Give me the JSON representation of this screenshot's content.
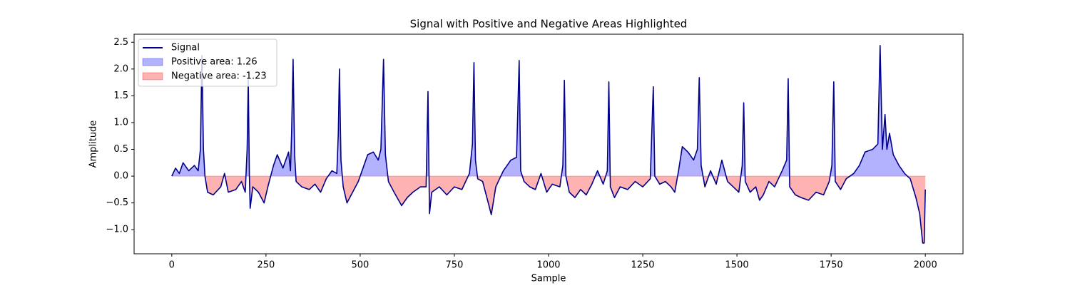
{
  "chart_data": {
    "type": "line",
    "title": "Signal with Positive and Negative Areas Highlighted",
    "x_label": "Sample",
    "y_label": "Amplitude",
    "xlim": [
      -100,
      2100
    ],
    "ylim": [
      -1.45,
      2.65
    ],
    "xticks": [
      0,
      250,
      500,
      750,
      1000,
      1250,
      1500,
      1750,
      2000
    ],
    "yticks": [
      {
        "value": -1.0,
        "label": "−1.0"
      },
      {
        "value": -0.5,
        "label": "−0.5"
      },
      {
        "value": 0.0,
        "label": "0.0"
      },
      {
        "value": 0.5,
        "label": "0.5"
      },
      {
        "value": 1.0,
        "label": "1.0"
      },
      {
        "value": 1.5,
        "label": "1.5"
      },
      {
        "value": 2.0,
        "label": "2.0"
      },
      {
        "value": 2.5,
        "label": "2.5"
      }
    ],
    "legend": "upper left",
    "x": [
      0,
      10,
      20,
      30,
      45,
      60,
      70,
      76,
      80,
      84,
      88,
      95,
      110,
      130,
      140,
      150,
      170,
      185,
      195,
      200,
      203,
      206,
      208,
      215,
      230,
      245,
      255,
      270,
      280,
      295,
      310,
      315,
      318,
      322,
      326,
      330,
      345,
      365,
      380,
      395,
      410,
      425,
      438,
      442,
      445,
      449,
      455,
      465,
      480,
      495,
      505,
      520,
      535,
      548,
      555,
      562,
      567,
      575,
      590,
      610,
      625,
      640,
      660,
      675,
      680,
      684,
      690,
      710,
      730,
      750,
      770,
      790,
      798,
      802,
      806,
      812,
      825,
      840,
      848,
      860,
      880,
      900,
      915,
      922,
      926,
      935,
      950,
      965,
      980,
      995,
      1010,
      1030,
      1038,
      1042,
      1046,
      1055,
      1070,
      1085,
      1100,
      1115,
      1130,
      1145,
      1156,
      1160,
      1164,
      1175,
      1190,
      1210,
      1230,
      1250,
      1270,
      1278,
      1282,
      1295,
      1310,
      1325,
      1335,
      1345,
      1355,
      1370,
      1385,
      1395,
      1400,
      1405,
      1415,
      1430,
      1445,
      1460,
      1475,
      1490,
      1505,
      1514,
      1518,
      1522,
      1535,
      1550,
      1560,
      1570,
      1585,
      1600,
      1620,
      1632,
      1636,
      1640,
      1655,
      1670,
      1690,
      1710,
      1730,
      1745,
      1752,
      1757,
      1761,
      1775,
      1790,
      1810,
      1825,
      1840,
      1860,
      1874,
      1880,
      1886,
      1893,
      1898,
      1905,
      1915,
      1930,
      1945,
      1960,
      1975,
      1985,
      1993,
      1997,
      2000
    ],
    "series": [
      {
        "name": "Signal",
        "color": "#00008b",
        "values": [
          0.0,
          0.15,
          0.05,
          0.25,
          0.1,
          0.2,
          0.1,
          0.5,
          2.25,
          0.5,
          0.0,
          -0.3,
          -0.35,
          -0.2,
          0.05,
          -0.3,
          -0.25,
          -0.1,
          -0.3,
          0.5,
          1.8,
          0.0,
          -0.6,
          -0.2,
          -0.3,
          -0.5,
          -0.2,
          0.2,
          0.4,
          0.15,
          0.45,
          0.1,
          0.8,
          2.18,
          0.4,
          -0.1,
          -0.2,
          -0.25,
          -0.15,
          -0.3,
          -0.05,
          0.1,
          0.05,
          0.8,
          2.0,
          0.3,
          -0.2,
          -0.5,
          -0.3,
          -0.1,
          0.1,
          0.4,
          0.45,
          0.3,
          0.5,
          2.18,
          0.4,
          -0.1,
          -0.3,
          -0.55,
          -0.4,
          -0.3,
          -0.2,
          -0.2,
          1.58,
          -0.7,
          -0.3,
          -0.2,
          -0.35,
          -0.2,
          -0.25,
          0.05,
          0.6,
          2.12,
          0.3,
          -0.05,
          -0.1,
          -0.5,
          -0.72,
          -0.2,
          0.1,
          0.3,
          0.35,
          2.16,
          0.1,
          -0.1,
          -0.2,
          -0.25,
          0.05,
          -0.3,
          -0.15,
          -0.2,
          0.2,
          1.79,
          0.0,
          -0.3,
          -0.4,
          -0.25,
          -0.35,
          -0.15,
          0.1,
          -0.15,
          0.1,
          1.76,
          -0.2,
          -0.4,
          -0.2,
          -0.25,
          -0.1,
          -0.2,
          -0.05,
          1.67,
          0.0,
          -0.15,
          -0.1,
          -0.2,
          -0.3,
          0.1,
          0.55,
          0.45,
          0.3,
          0.5,
          1.84,
          0.2,
          -0.2,
          0.1,
          -0.15,
          0.3,
          -0.1,
          -0.2,
          -0.3,
          0.2,
          1.37,
          -0.1,
          -0.3,
          -0.2,
          -0.45,
          -0.35,
          -0.1,
          -0.2,
          0.1,
          0.3,
          1.82,
          -0.2,
          -0.35,
          -0.4,
          -0.45,
          -0.3,
          -0.35,
          -0.1,
          0.2,
          1.76,
          -0.1,
          -0.25,
          -0.05,
          0.05,
          0.2,
          0.45,
          0.5,
          0.6,
          2.44,
          0.5,
          1.15,
          0.5,
          0.8,
          0.4,
          0.2,
          0.05,
          -0.05,
          -0.4,
          -0.7,
          -1.25,
          -1.25,
          -0.25
        ]
      }
    ],
    "areas": [
      {
        "name": "Positive area: 1.26",
        "color": "#0000ff",
        "side": "positive"
      },
      {
        "name": "Negative area: -1.23",
        "color": "#ff0000",
        "side": "negative"
      }
    ]
  }
}
